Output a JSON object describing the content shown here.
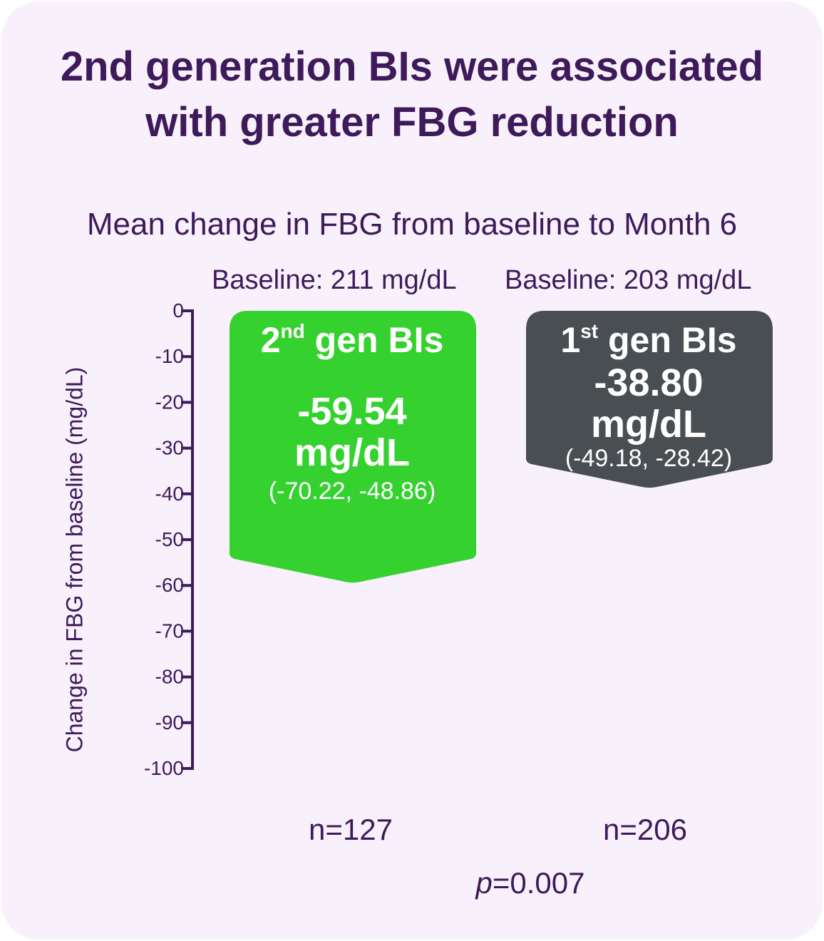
{
  "chart_data": {
    "type": "bar",
    "title_lines": [
      "2nd generation BIs were associated",
      "with greater FBG reduction"
    ],
    "subtitle": "Mean change in FBG from baseline to Month 6",
    "ylabel": "Change in FBG from baseline (mg/dL)",
    "ylim": [
      -100,
      0
    ],
    "yticks": [
      "0",
      "-10",
      "-20",
      "-30",
      "-40",
      "-50",
      "-60",
      "-70",
      "-80",
      "-90",
      "-100"
    ],
    "ytick_values": [
      0,
      -10,
      -20,
      -30,
      -40,
      -50,
      -60,
      -70,
      -80,
      -90,
      -100
    ],
    "series": [
      {
        "label_main": "2",
        "label_sup": "nd",
        "label_rest": " gen BIs",
        "value": -59.54,
        "value_text": "-59.54",
        "unit": "mg/dL",
        "ci_text": "(-70.22, -48.86)",
        "baseline_text": "Baseline: 211 mg/dL",
        "n_text": "n=127",
        "color": "#35d12f"
      },
      {
        "label_main": "1",
        "label_sup": "st",
        "label_rest": " gen BIs",
        "value": -38.8,
        "value_text": "-38.80",
        "unit": "mg/dL",
        "ci_text": "(-49.18, -28.42)",
        "baseline_text": "Baseline: 203 mg/dL",
        "n_text": "n=206",
        "color": "#494e53"
      }
    ],
    "p_label": "p",
    "p_rest": "=0.007",
    "axis_color": "#3e1a5a",
    "grid": false,
    "legend": "none"
  }
}
